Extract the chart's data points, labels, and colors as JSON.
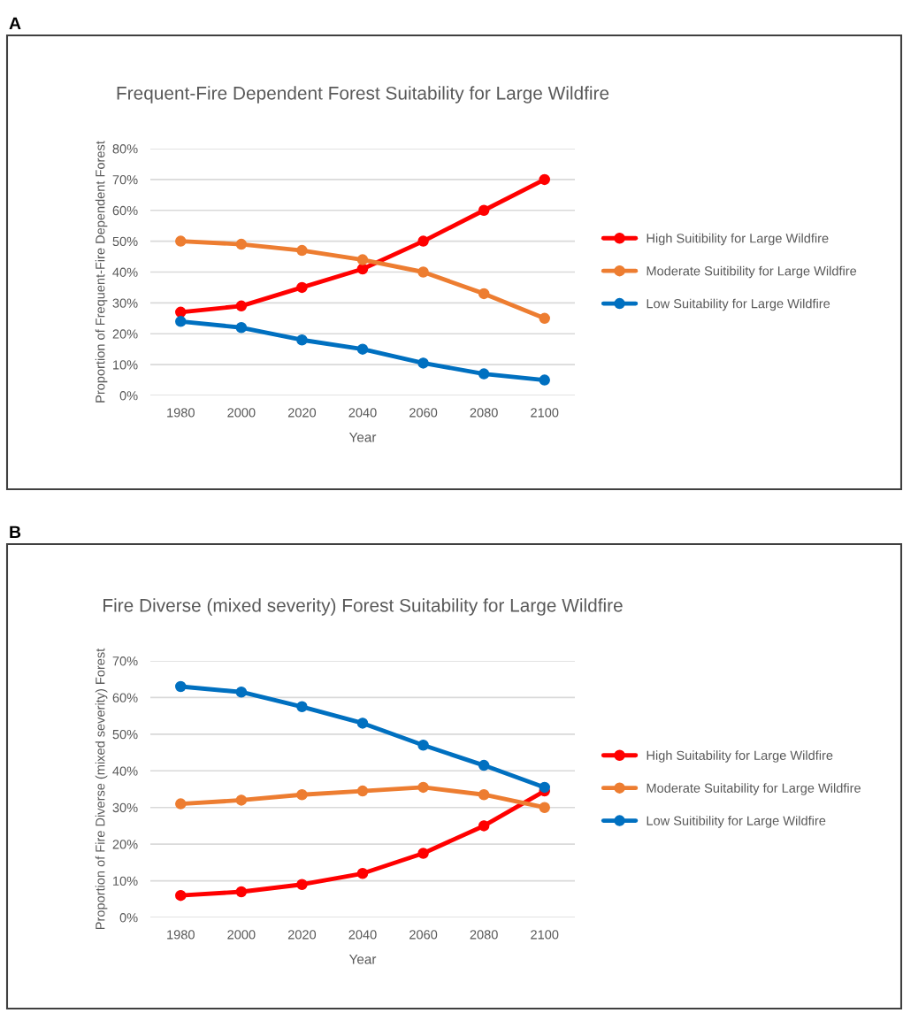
{
  "chart_data": [
    {
      "type": "line",
      "title": "Frequent-Fire Dependent Forest Suitability for Large Wildfire",
      "xlabel": "Year",
      "ylabel": "Proportion of Frequent-Fire Dependent Forest",
      "annotations": [
        "A"
      ],
      "categories": [
        "1980",
        "2000",
        "2020",
        "2040",
        "2060",
        "2080",
        "2100"
      ],
      "series": [
        {
          "name": "High Suitibility for Large Wildfire",
          "color": "#ff0000",
          "values": [
            27,
            29,
            35,
            41,
            50,
            60,
            70
          ]
        },
        {
          "name": "Moderate Suitibility for Large Wildfire",
          "color": "#ed7d31",
          "values": [
            50,
            49,
            47,
            44,
            40,
            33,
            25
          ]
        },
        {
          "name": "Low Suitability for Large Wildfire",
          "color": "#0070c0",
          "values": [
            24,
            22,
            18,
            15,
            10.5,
            7,
            5
          ]
        }
      ],
      "ylim": [
        0,
        80
      ],
      "yticks": [
        {
          "value": 0,
          "label": "0%"
        },
        {
          "value": 10,
          "label": "10%"
        },
        {
          "value": 20,
          "label": "20%"
        },
        {
          "value": 30,
          "label": "30%"
        },
        {
          "value": 40,
          "label": "40%"
        },
        {
          "value": 50,
          "label": "50%"
        },
        {
          "value": 60,
          "label": "60%"
        },
        {
          "value": 70,
          "label": "70%"
        },
        {
          "value": 80,
          "label": "80%"
        }
      ],
      "grid": "y",
      "legend": "right",
      "marker": "circle",
      "line_style": "solid"
    },
    {
      "type": "line",
      "title": "Fire Diverse (mixed severity) Forest Suitability for Large Wildfire",
      "xlabel": "Year",
      "ylabel": "Proportion of Fire Diverse (mixed severity) Forest",
      "annotations": [
        "B"
      ],
      "categories": [
        "1980",
        "2000",
        "2020",
        "2040",
        "2060",
        "2080",
        "2100"
      ],
      "series": [
        {
          "name": "High Suitability for Large Wildfire",
          "color": "#ff0000",
          "values": [
            6,
            7,
            9,
            12,
            17.5,
            25,
            34.5
          ]
        },
        {
          "name": "Moderate Suitability for Large Wildfire",
          "color": "#ed7d31",
          "values": [
            31,
            32,
            33.5,
            34.5,
            35.5,
            33.5,
            30
          ]
        },
        {
          "name": "Low Suitibility for Large Wildfire",
          "color": "#0070c0",
          "values": [
            63,
            61.5,
            57.5,
            53,
            47,
            41.5,
            35.5
          ]
        }
      ],
      "ylim": [
        0,
        70
      ],
      "yticks": [
        {
          "value": 0,
          "label": "0%"
        },
        {
          "value": 10,
          "label": "10%"
        },
        {
          "value": 20,
          "label": "20%"
        },
        {
          "value": 30,
          "label": "30%"
        },
        {
          "value": 40,
          "label": "40%"
        },
        {
          "value": 50,
          "label": "50%"
        },
        {
          "value": 60,
          "label": "60%"
        },
        {
          "value": 70,
          "label": "70%"
        }
      ],
      "grid": "y",
      "legend": "right",
      "marker": "circle",
      "line_style": "solid"
    }
  ]
}
